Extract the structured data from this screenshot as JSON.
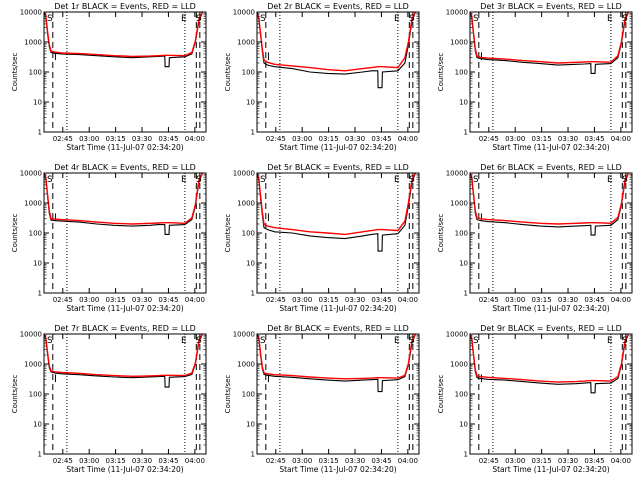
{
  "shared": {
    "xlabel": "Start Time (11-Jul-07 02:34:20)",
    "ylabel": "Counts/sec",
    "x_tick_labels": [
      "02:45",
      "03:00",
      "03:15",
      "03:30",
      "03:45",
      "04:00"
    ],
    "y_tick_labels": [
      "1",
      "10",
      "100",
      "1000",
      "10000"
    ],
    "corner_markers": [
      "S",
      "E",
      "S"
    ]
  },
  "chart_data": [
    {
      "type": "line",
      "title": "Det 1r BLACK = Events, RED = LLD",
      "x_unit": "minutes since 02:34:20",
      "x": [
        0,
        1,
        2,
        3,
        4,
        6,
        10,
        20,
        30,
        40,
        50,
        60,
        65,
        68.6,
        68.8,
        71,
        71.2,
        80,
        84,
        86,
        88,
        90
      ],
      "xlim": [
        0,
        92
      ],
      "ylim": [
        1,
        10000
      ],
      "yscale": "log",
      "series": [
        {
          "color": "#000000",
          "values": [
            10000,
            7000,
            2000,
            700,
            450,
            420,
            400,
            380,
            350,
            320,
            300,
            320,
            330,
            340,
            150,
            150,
            300,
            320,
            400,
            1000,
            5000,
            10000
          ]
        },
        {
          "color": "#ff0000",
          "values": [
            10000,
            7500,
            2300,
            800,
            500,
            460,
            430,
            410,
            380,
            350,
            330,
            340,
            350,
            360,
            360,
            360,
            360,
            350,
            450,
            1100,
            6000,
            10000
          ]
        }
      ],
      "vlines_dashed": [
        5,
        86.5,
        88.5
      ],
      "vlines_dotted": [
        13,
        80
      ],
      "gaps_dashed": [
        6.5
      ]
    },
    {
      "type": "line",
      "title": "Det 2r BLACK = Events, RED = LLD",
      "x_unit": "minutes since 02:34:20",
      "x": [
        0,
        1,
        2,
        3,
        4,
        6,
        10,
        20,
        30,
        40,
        50,
        60,
        65,
        68.6,
        68.8,
        71,
        71.2,
        80,
        84,
        86,
        88,
        90
      ],
      "xlim": [
        0,
        92
      ],
      "ylim": [
        1,
        10000
      ],
      "yscale": "log",
      "series": [
        {
          "color": "#000000",
          "values": [
            10000,
            6000,
            1800,
            500,
            200,
            170,
            150,
            130,
            100,
            90,
            85,
            100,
            110,
            110,
            30,
            30,
            100,
            110,
            200,
            800,
            5000,
            10000
          ]
        },
        {
          "color": "#ff0000",
          "values": [
            10000,
            6500,
            2000,
            600,
            250,
            210,
            180,
            160,
            140,
            120,
            110,
            130,
            140,
            150,
            150,
            150,
            150,
            140,
            300,
            1000,
            6000,
            10000
          ]
        }
      ],
      "vlines_dashed": [
        5,
        86.5,
        88.5
      ],
      "vlines_dotted": [
        13,
        80
      ],
      "gaps_dashed": [
        6.5
      ]
    },
    {
      "type": "line",
      "title": "Det 3r BLACK = Events, RED = LLD",
      "x_unit": "minutes since 02:34:20",
      "x": [
        0,
        1,
        2,
        3,
        4,
        6,
        10,
        20,
        30,
        40,
        50,
        60,
        65,
        68.6,
        68.8,
        71,
        71.2,
        80,
        84,
        86,
        88,
        90
      ],
      "xlim": [
        0,
        92
      ],
      "ylim": [
        1,
        10000
      ],
      "yscale": "log",
      "series": [
        {
          "color": "#000000",
          "values": [
            10000,
            6500,
            1800,
            500,
            300,
            280,
            260,
            240,
            210,
            190,
            170,
            180,
            185,
            190,
            90,
            90,
            180,
            190,
            300,
            900,
            5000,
            10000
          ]
        },
        {
          "color": "#ff0000",
          "values": [
            10000,
            7000,
            2000,
            600,
            340,
            310,
            290,
            270,
            240,
            220,
            200,
            210,
            215,
            220,
            220,
            220,
            220,
            210,
            350,
            1000,
            6000,
            10000
          ]
        }
      ],
      "vlines_dashed": [
        5,
        86.5,
        88.5
      ],
      "vlines_dotted": [
        13,
        80
      ],
      "gaps_dashed": [
        6.5
      ]
    },
    {
      "type": "line",
      "title": "Det 4r BLACK = Events, RED = LLD",
      "x_unit": "minutes since 02:34:20",
      "x": [
        0,
        1,
        2,
        3,
        4,
        6,
        10,
        20,
        30,
        40,
        50,
        60,
        65,
        68.6,
        68.8,
        71,
        71.2,
        80,
        84,
        86,
        88,
        90
      ],
      "xlim": [
        0,
        92
      ],
      "ylim": [
        1,
        10000
      ],
      "yscale": "log",
      "series": [
        {
          "color": "#000000",
          "values": [
            10000,
            6500,
            1800,
            450,
            270,
            260,
            250,
            230,
            200,
            180,
            170,
            180,
            190,
            190,
            90,
            90,
            180,
            190,
            280,
            800,
            5000,
            10000
          ]
        },
        {
          "color": "#ff0000",
          "values": [
            10000,
            7000,
            2000,
            550,
            300,
            290,
            280,
            260,
            230,
            210,
            200,
            210,
            215,
            220,
            220,
            220,
            220,
            210,
            320,
            900,
            6000,
            10000
          ]
        }
      ],
      "vlines_dashed": [
        5,
        86.5,
        88.5
      ],
      "vlines_dotted": [
        13,
        80
      ],
      "gaps_dashed": [
        6.5
      ]
    },
    {
      "type": "line",
      "title": "Det 5r BLACK = Events, RED = LLD",
      "x_unit": "minutes since 02:34:20",
      "x": [
        0,
        1,
        2,
        3,
        4,
        6,
        10,
        20,
        30,
        40,
        50,
        60,
        65,
        68.6,
        68.8,
        71,
        71.2,
        80,
        84,
        86,
        88,
        90
      ],
      "xlim": [
        0,
        92
      ],
      "ylim": [
        1,
        10000
      ],
      "yscale": "log",
      "series": [
        {
          "color": "#000000",
          "values": [
            10000,
            6000,
            1500,
            400,
            150,
            130,
            110,
            100,
            80,
            70,
            65,
            80,
            90,
            95,
            25,
            25,
            85,
            95,
            180,
            800,
            5000,
            10000
          ]
        },
        {
          "color": "#ff0000",
          "values": [
            10000,
            6500,
            1800,
            500,
            200,
            170,
            150,
            130,
            110,
            100,
            90,
            110,
            120,
            130,
            130,
            130,
            130,
            120,
            250,
            1000,
            6000,
            10000
          ]
        }
      ],
      "vlines_dashed": [
        5,
        86.5,
        88.5
      ],
      "vlines_dotted": [
        13,
        80
      ],
      "gaps_dashed": [
        6.5
      ]
    },
    {
      "type": "line",
      "title": "Det 6r BLACK = Events, RED = LLD",
      "x_unit": "minutes since 02:34:20",
      "x": [
        0,
        1,
        2,
        3,
        4,
        6,
        10,
        20,
        30,
        40,
        50,
        60,
        65,
        68.6,
        68.8,
        71,
        71.2,
        80,
        84,
        86,
        88,
        90
      ],
      "xlim": [
        0,
        92
      ],
      "ylim": [
        1,
        10000
      ],
      "yscale": "log",
      "series": [
        {
          "color": "#000000",
          "values": [
            10000,
            6500,
            1800,
            450,
            280,
            260,
            240,
            220,
            190,
            170,
            160,
            170,
            175,
            180,
            85,
            85,
            170,
            180,
            280,
            850,
            5000,
            10000
          ]
        },
        {
          "color": "#ff0000",
          "values": [
            10000,
            7000,
            2000,
            550,
            320,
            300,
            280,
            260,
            230,
            210,
            200,
            210,
            215,
            220,
            220,
            220,
            220,
            210,
            330,
            950,
            6000,
            10000
          ]
        }
      ],
      "vlines_dashed": [
        5,
        86.5,
        88.5
      ],
      "vlines_dotted": [
        13,
        80
      ],
      "gaps_dashed": [
        6.5
      ]
    },
    {
      "type": "line",
      "title": "Det 7r BLACK = Events, RED = LLD",
      "x_unit": "minutes since 02:34:20",
      "x": [
        0,
        1,
        2,
        3,
        4,
        6,
        10,
        20,
        30,
        40,
        50,
        60,
        65,
        68.6,
        68.8,
        71,
        71.2,
        80,
        84,
        86,
        88,
        90
      ],
      "xlim": [
        0,
        92
      ],
      "ylim": [
        1,
        10000
      ],
      "yscale": "log",
      "series": [
        {
          "color": "#000000",
          "values": [
            10000,
            7000,
            2200,
            750,
            550,
            500,
            470,
            440,
            400,
            370,
            350,
            370,
            380,
            390,
            170,
            170,
            360,
            380,
            450,
            1000,
            5500,
            10000
          ]
        },
        {
          "color": "#ff0000",
          "values": [
            10000,
            7500,
            2500,
            850,
            600,
            550,
            520,
            490,
            440,
            410,
            390,
            400,
            410,
            420,
            420,
            420,
            420,
            410,
            500,
            1100,
            6500,
            10000
          ]
        }
      ],
      "vlines_dashed": [
        5,
        86.5,
        88.5
      ],
      "vlines_dotted": [
        13,
        80
      ],
      "gaps_dashed": [
        6.5
      ]
    },
    {
      "type": "line",
      "title": "Det 8r BLACK = Events, RED = LLD",
      "x_unit": "minutes since 02:34:20",
      "x": [
        0,
        1,
        2,
        3,
        4,
        6,
        10,
        20,
        30,
        40,
        50,
        60,
        65,
        68.6,
        68.8,
        71,
        71.2,
        80,
        84,
        86,
        88,
        90
      ],
      "xlim": [
        0,
        92
      ],
      "ylim": [
        1,
        10000
      ],
      "yscale": "log",
      "series": [
        {
          "color": "#000000",
          "values": [
            10000,
            7000,
            2100,
            700,
            450,
            420,
            390,
            360,
            320,
            290,
            270,
            290,
            300,
            310,
            120,
            120,
            280,
            300,
            380,
            950,
            5000,
            10000
          ]
        },
        {
          "color": "#ff0000",
          "values": [
            10000,
            7500,
            2400,
            800,
            500,
            470,
            440,
            410,
            370,
            340,
            320,
            330,
            340,
            350,
            350,
            350,
            350,
            340,
            420,
            1050,
            6000,
            10000
          ]
        }
      ],
      "vlines_dashed": [
        5,
        86.5,
        88.5
      ],
      "vlines_dotted": [
        13,
        80
      ],
      "gaps_dashed": [
        6.5
      ]
    },
    {
      "type": "line",
      "title": "Det 9r BLACK = Events, RED = LLD",
      "x_unit": "minutes since 02:34:20",
      "x": [
        0,
        1,
        2,
        3,
        4,
        6,
        10,
        20,
        30,
        40,
        50,
        60,
        65,
        68.6,
        68.8,
        71,
        71.2,
        80,
        84,
        86,
        88,
        90
      ],
      "xlim": [
        0,
        92
      ],
      "ylim": [
        1,
        10000
      ],
      "yscale": "log",
      "series": [
        {
          "color": "#000000",
          "values": [
            10000,
            6500,
            1900,
            550,
            350,
            330,
            310,
            290,
            260,
            230,
            210,
            220,
            230,
            240,
            110,
            110,
            220,
            230,
            330,
            900,
            5000,
            10000
          ]
        },
        {
          "color": "#ff0000",
          "values": [
            10000,
            7000,
            2100,
            650,
            400,
            380,
            360,
            330,
            300,
            270,
            250,
            260,
            270,
            280,
            280,
            280,
            280,
            270,
            380,
            1000,
            6000,
            10000
          ]
        }
      ],
      "vlines_dashed": [
        5,
        86.5,
        88.5
      ],
      "vlines_dotted": [
        13,
        80
      ],
      "gaps_dashed": [
        6.5
      ]
    }
  ]
}
